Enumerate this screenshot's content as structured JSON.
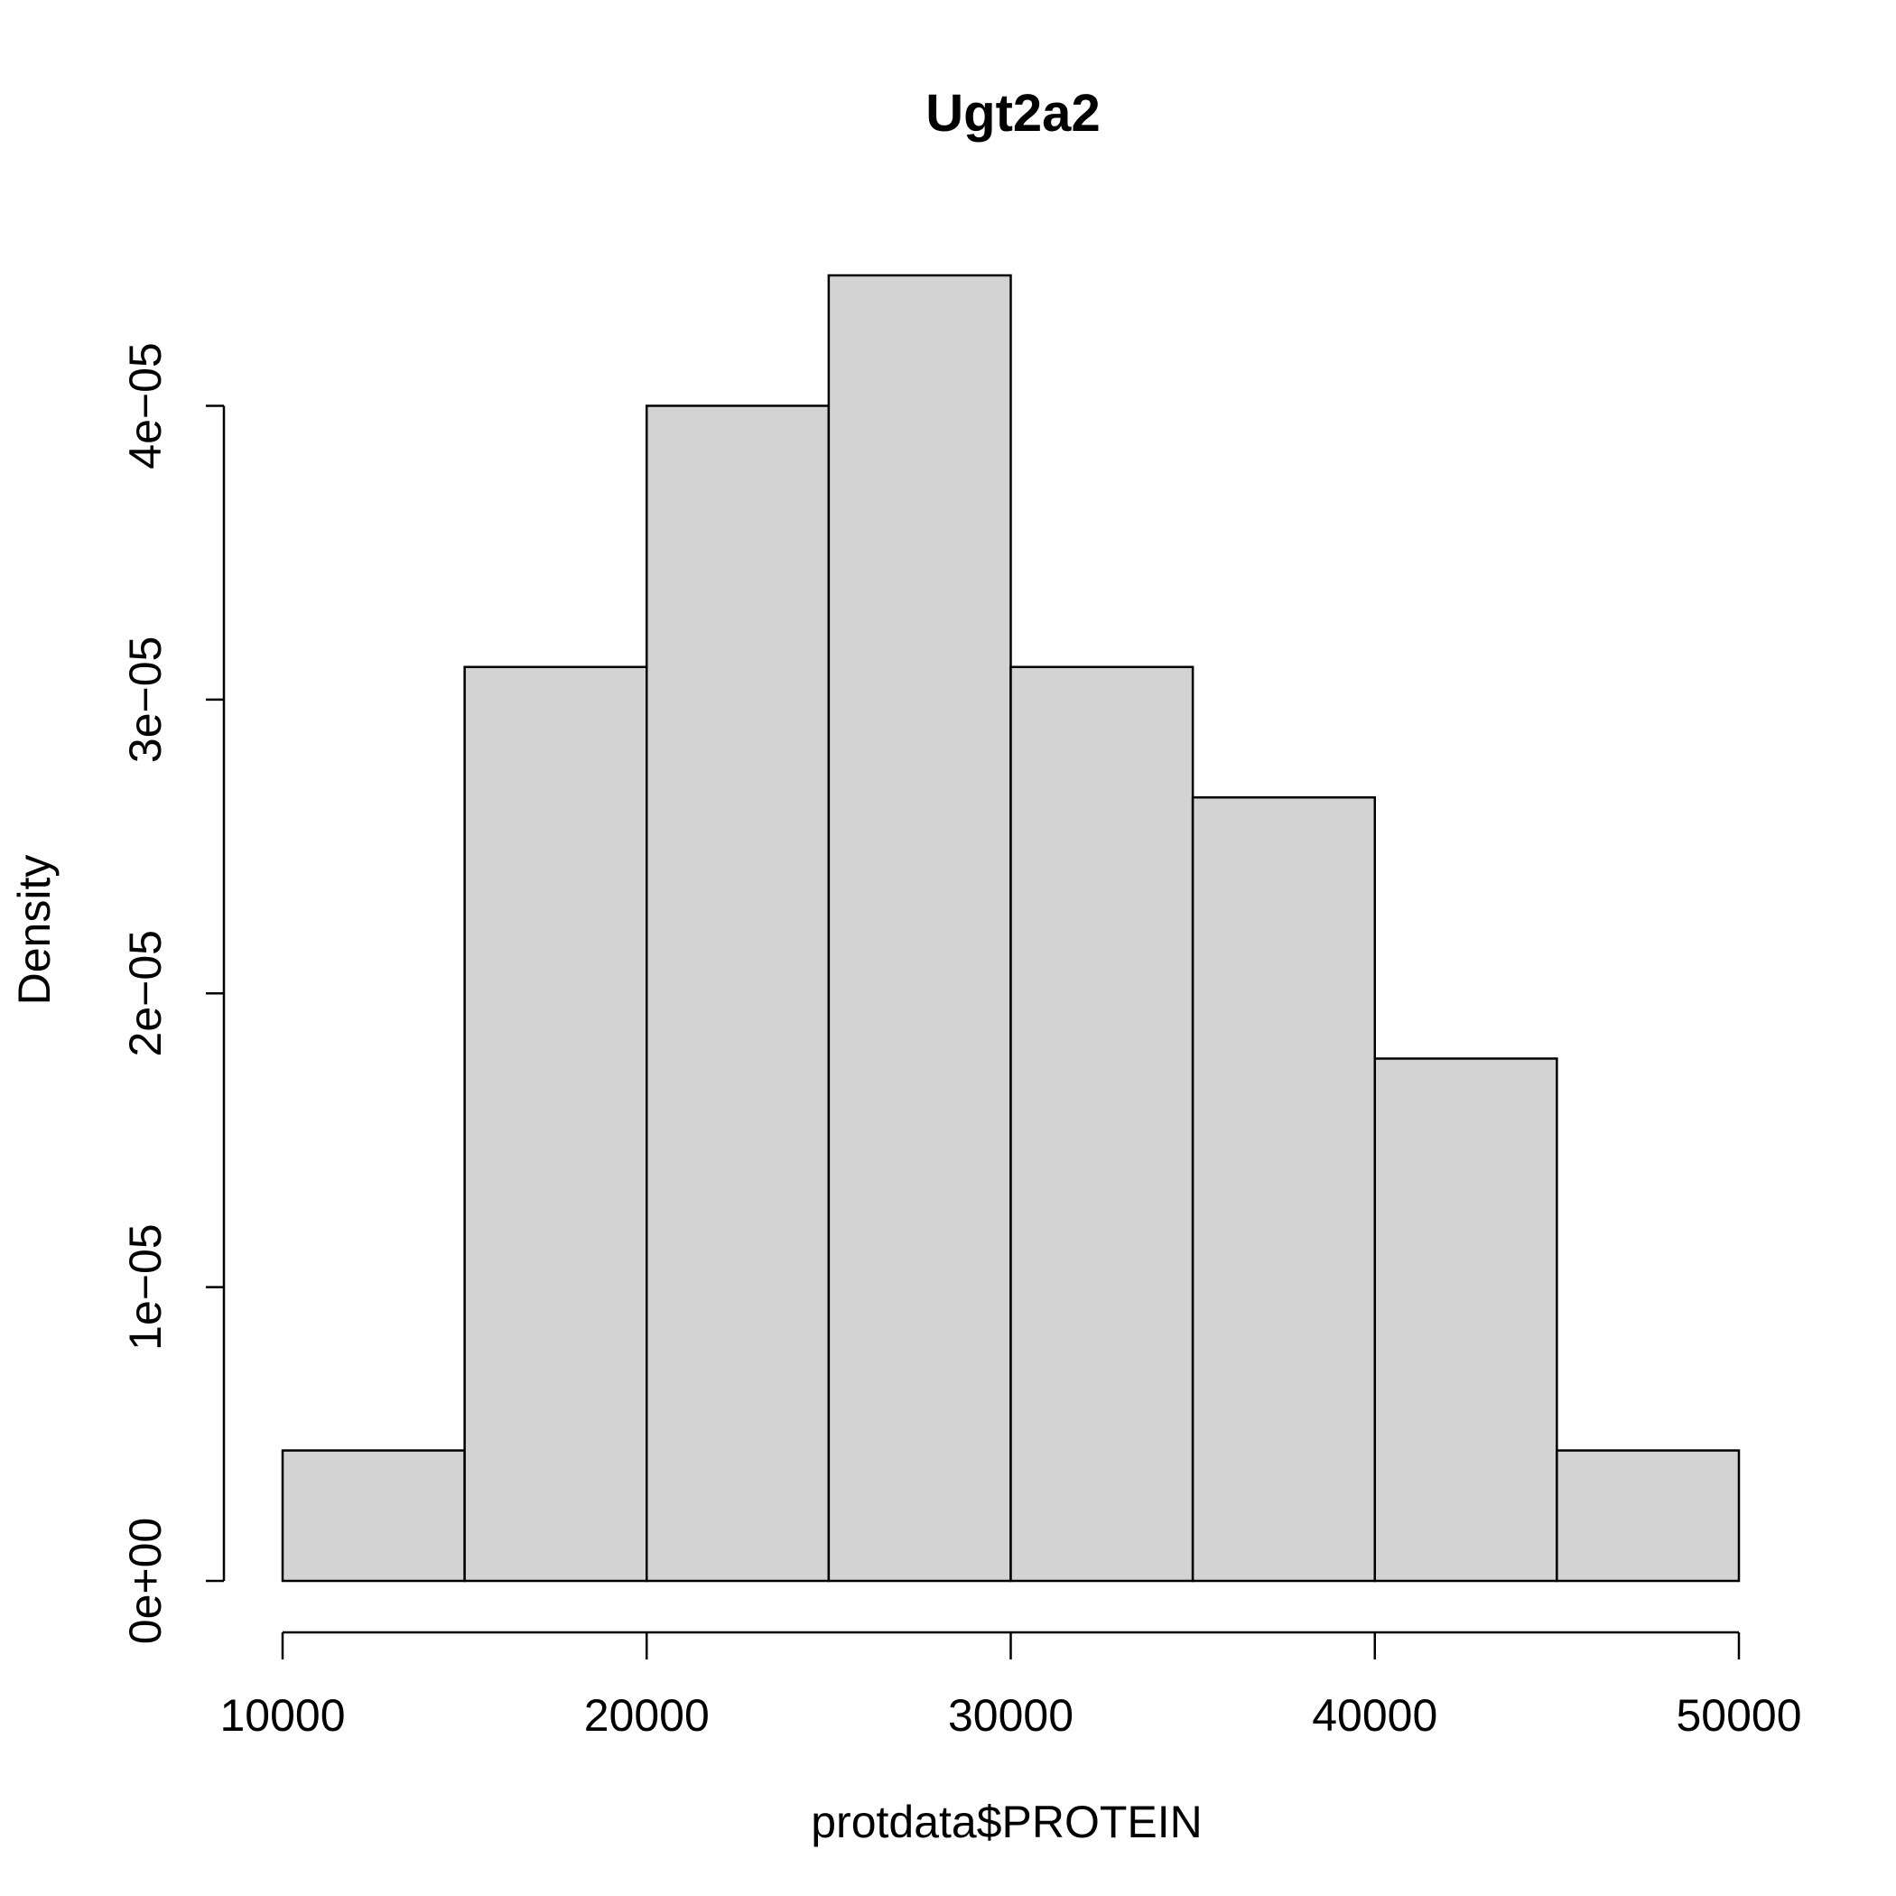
{
  "chart_data": {
    "type": "bar",
    "title": "Ugt2a2",
    "xlabel": "protdata$PROTEIN",
    "ylabel": "Density",
    "bins": [
      {
        "from": 10000,
        "to": 15000,
        "density": 4.44e-06
      },
      {
        "from": 15000,
        "to": 20000,
        "density": 3.111e-05
      },
      {
        "from": 20000,
        "to": 25000,
        "density": 4e-05
      },
      {
        "from": 25000,
        "to": 30000,
        "density": 4.444e-05
      },
      {
        "from": 30000,
        "to": 35000,
        "density": 3.111e-05
      },
      {
        "from": 35000,
        "to": 40000,
        "density": 2.667e-05
      },
      {
        "from": 40000,
        "to": 45000,
        "density": 1.778e-05
      },
      {
        "from": 45000,
        "to": 50000,
        "density": 4.44e-06
      }
    ],
    "x_ticks": [
      10000,
      20000,
      30000,
      40000,
      50000
    ],
    "x_tick_labels": [
      "10000",
      "20000",
      "30000",
      "40000",
      "50000"
    ],
    "y_ticks": [
      0,
      1e-05,
      2e-05,
      3e-05,
      4e-05
    ],
    "y_tick_labels": [
      "0e+00",
      "1e−05",
      "2e−05",
      "3e−05",
      "4e−05"
    ],
    "xlim": [
      10000,
      50000
    ],
    "ylim": [
      0,
      4.444e-05
    ],
    "grid": false,
    "colors": {
      "bar_fill": "#d3d3d3",
      "bar_stroke": "#000000"
    }
  }
}
